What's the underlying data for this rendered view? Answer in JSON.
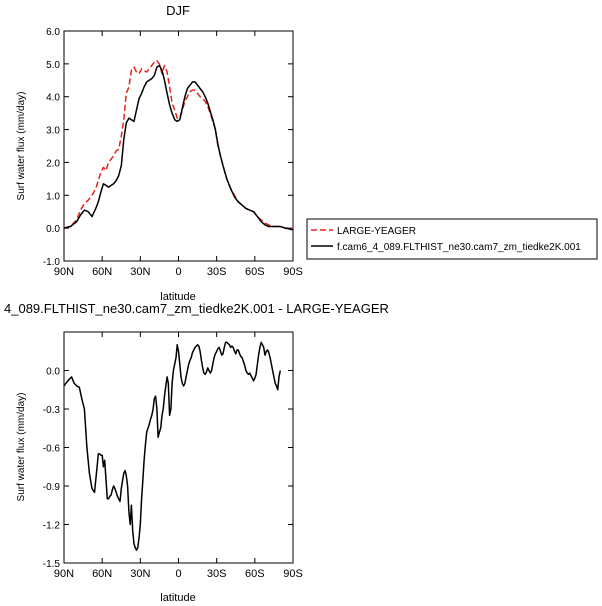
{
  "chart_data": [
    {
      "type": "line",
      "title": "DJF",
      "xlabel": "latitude",
      "ylabel": "Surf water flux (mm/day)",
      "xlim": [
        90,
        -90
      ],
      "ylim": [
        -1.0,
        6.0
      ],
      "x_ticks": [
        90,
        60,
        30,
        0,
        -30,
        -60,
        -90
      ],
      "x_tick_labels": [
        "90N",
        "60N",
        "30N",
        "0",
        "30S",
        "60S",
        "90S"
      ],
      "y_ticks": [
        -1.0,
        0.0,
        1.0,
        2.0,
        3.0,
        4.0,
        5.0,
        6.0
      ],
      "y_tick_labels": [
        "-1.0",
        "0.0",
        "1.0",
        "2.0",
        "3.0",
        "4.0",
        "5.0",
        "6.0"
      ],
      "grid": false,
      "legend": "outside-right",
      "series": [
        {
          "name": "LARGE-YEAGER",
          "color": "#e8231a",
          "dash": "dashed",
          "x": [
            90,
            85,
            80,
            77,
            74,
            71,
            68,
            65,
            63,
            61,
            59,
            57,
            55,
            53,
            51,
            49,
            47,
            45,
            43,
            41,
            39,
            37,
            35,
            33,
            31,
            29,
            27,
            25,
            23,
            21,
            19,
            17,
            15,
            13,
            11,
            9,
            7,
            5,
            3,
            1,
            -1,
            -3,
            -5,
            -7,
            -9,
            -11,
            -13,
            -15,
            -17,
            -19,
            -21,
            -23,
            -25,
            -27,
            -29,
            -31,
            -33,
            -35,
            -38,
            -41,
            -44,
            -47,
            -50,
            -53,
            -56,
            -59,
            -62,
            -65,
            -68,
            -71,
            -74,
            -77,
            -80,
            -84,
            -90
          ],
          "y": [
            0.0,
            0.05,
            0.25,
            0.55,
            0.75,
            0.85,
            1.0,
            1.2,
            1.45,
            1.7,
            1.85,
            1.75,
            2.0,
            2.1,
            2.2,
            2.35,
            2.4,
            2.8,
            3.3,
            4.1,
            4.3,
            4.8,
            4.9,
            4.75,
            4.7,
            4.85,
            4.8,
            4.75,
            4.85,
            4.95,
            5.05,
            5.1,
            5.0,
            4.7,
            4.95,
            4.75,
            4.3,
            3.8,
            3.6,
            3.35,
            3.35,
            3.6,
            3.85,
            4.0,
            4.15,
            4.2,
            4.2,
            4.1,
            4.0,
            3.95,
            3.85,
            3.7,
            3.5,
            3.25,
            3.0,
            2.5,
            2.2,
            1.9,
            1.5,
            1.2,
            1.0,
            0.8,
            0.7,
            0.6,
            0.55,
            0.5,
            0.35,
            0.25,
            0.15,
            0.1,
            0.05,
            0.05,
            0.05,
            0.0,
            0.0
          ]
        },
        {
          "name": "f.cam6_4_089.FLTHIST_ne30.cam7_zm_tiedke2K.001",
          "color": "#000000",
          "dash": "solid",
          "x": [
            90,
            85,
            80,
            77,
            74,
            71,
            68,
            65,
            63,
            61,
            59,
            57,
            55,
            53,
            51,
            49,
            47,
            45,
            43,
            41,
            39,
            37,
            35,
            33,
            31,
            29,
            27,
            25,
            23,
            21,
            19,
            17,
            15,
            13,
            11,
            9,
            7,
            5,
            3,
            1,
            -1,
            -3,
            -5,
            -7,
            -9,
            -11,
            -13,
            -15,
            -17,
            -19,
            -21,
            -23,
            -25,
            -27,
            -29,
            -31,
            -33,
            -35,
            -38,
            -41,
            -44,
            -47,
            -50,
            -53,
            -56,
            -59,
            -62,
            -65,
            -68,
            -71,
            -74,
            -77,
            -80,
            -84,
            -90
          ],
          "y": [
            0.0,
            0.05,
            0.2,
            0.4,
            0.55,
            0.5,
            0.35,
            0.6,
            0.8,
            1.1,
            1.35,
            1.3,
            1.25,
            1.3,
            1.35,
            1.45,
            1.6,
            1.9,
            2.7,
            3.2,
            3.35,
            3.3,
            3.25,
            3.6,
            3.95,
            4.1,
            4.3,
            4.45,
            4.5,
            4.55,
            4.65,
            4.9,
            4.95,
            4.8,
            4.5,
            4.1,
            3.75,
            3.5,
            3.3,
            3.25,
            3.3,
            3.65,
            4.0,
            4.25,
            4.35,
            4.45,
            4.45,
            4.35,
            4.25,
            4.15,
            4.0,
            3.8,
            3.55,
            3.3,
            3.0,
            2.55,
            2.2,
            1.9,
            1.5,
            1.2,
            0.95,
            0.8,
            0.7,
            0.6,
            0.55,
            0.5,
            0.35,
            0.2,
            0.1,
            0.05,
            0.05,
            0.05,
            0.05,
            0.0,
            -0.05
          ]
        }
      ]
    },
    {
      "type": "line",
      "title": "4_089.FLTHIST_ne30.cam7_zm_tiedke2K.001 - LARGE-YEAGER",
      "xlabel": "latitude",
      "ylabel": "Surf water flux (mm/day)",
      "xlim": [
        90,
        -90
      ],
      "ylim": [
        -1.5,
        0.3
      ],
      "x_ticks": [
        90,
        60,
        30,
        0,
        -30,
        -60,
        -90
      ],
      "x_tick_labels": [
        "90N",
        "60N",
        "30N",
        "0",
        "30S",
        "60S",
        "90S"
      ],
      "y_ticks": [
        -1.5,
        -1.2,
        -0.9,
        -0.6,
        -0.3,
        0.0
      ],
      "y_tick_labels": [
        "-1.5",
        "-1.2",
        "-0.9",
        "-0.6",
        "-0.3",
        "0.0"
      ],
      "grid": false,
      "series": [
        {
          "color": "#000000",
          "dash": "solid",
          "x": [
            90,
            87,
            84,
            82,
            80,
            78,
            76,
            74,
            72,
            70,
            68,
            66,
            64,
            63,
            62,
            61,
            60,
            59,
            58,
            57,
            56,
            55,
            54,
            53,
            52,
            51,
            50,
            49,
            48,
            47,
            46,
            45,
            44,
            43,
            42,
            41,
            40,
            39,
            38,
            37,
            36,
            35,
            34,
            33,
            32,
            31,
            30,
            29,
            28,
            27,
            26,
            25,
            24,
            23,
            22,
            21,
            20,
            19,
            18,
            17,
            16,
            15,
            14,
            13,
            12,
            11,
            10,
            9,
            8,
            7,
            6,
            5,
            4,
            3,
            2,
            1,
            0,
            -1,
            -2,
            -3,
            -4,
            -5,
            -6,
            -7,
            -8,
            -9,
            -10,
            -11,
            -12,
            -13,
            -14,
            -15,
            -16,
            -17,
            -18,
            -19,
            -20,
            -21,
            -22,
            -23,
            -24,
            -25,
            -26,
            -27,
            -28,
            -29,
            -30,
            -31,
            -32,
            -33,
            -34,
            -35,
            -36,
            -37,
            -38,
            -39,
            -40,
            -41,
            -42,
            -43,
            -44,
            -45,
            -46,
            -47,
            -48,
            -49,
            -50,
            -51,
            -52,
            -53,
            -54,
            -55,
            -56,
            -57,
            -58,
            -59,
            -60,
            -61,
            -62,
            -63,
            -64,
            -65,
            -66,
            -67,
            -68,
            -69,
            -70,
            -71,
            -72,
            -73,
            -74,
            -75,
            -76,
            -77,
            -78,
            -79,
            -80
          ],
          "y": [
            -0.12,
            -0.08,
            -0.05,
            -0.1,
            -0.12,
            -0.13,
            -0.22,
            -0.3,
            -0.6,
            -0.8,
            -0.92,
            -0.95,
            -0.75,
            -0.65,
            -0.65,
            -0.66,
            -0.66,
            -0.75,
            -0.7,
            -0.85,
            -1.0,
            -1.0,
            -0.98,
            -0.97,
            -0.93,
            -0.9,
            -0.92,
            -0.95,
            -0.98,
            -1.0,
            -1.02,
            -0.92,
            -0.86,
            -0.8,
            -0.78,
            -0.82,
            -0.9,
            -1.1,
            -1.2,
            -1.05,
            -1.25,
            -1.35,
            -1.38,
            -1.4,
            -1.38,
            -1.3,
            -1.2,
            -1.0,
            -0.85,
            -0.7,
            -0.58,
            -0.48,
            -0.45,
            -0.42,
            -0.38,
            -0.35,
            -0.3,
            -0.22,
            -0.2,
            -0.3,
            -0.52,
            -0.48,
            -0.45,
            -0.35,
            -0.3,
            -0.2,
            -0.12,
            -0.05,
            -0.1,
            -0.35,
            -0.3,
            -0.1,
            0.0,
            0.05,
            0.1,
            0.2,
            0.15,
            0.05,
            -0.05,
            -0.1,
            -0.12,
            -0.1,
            -0.05,
            0.0,
            0.05,
            0.08,
            0.1,
            0.14,
            0.16,
            0.18,
            0.19,
            0.2,
            0.19,
            0.15,
            0.08,
            0.02,
            -0.02,
            -0.03,
            -0.01,
            0.02,
            0.0,
            -0.02,
            0.0,
            0.05,
            0.1,
            0.13,
            0.15,
            0.17,
            0.18,
            0.15,
            0.12,
            0.13,
            0.18,
            0.22,
            0.22,
            0.21,
            0.2,
            0.18,
            0.19,
            0.18,
            0.15,
            0.13,
            0.16,
            0.16,
            0.13,
            0.11,
            0.1,
            0.07,
            0.04,
            0.0,
            -0.02,
            -0.03,
            -0.02,
            -0.04,
            -0.06,
            -0.08,
            -0.06,
            -0.03,
            0.05,
            0.12,
            0.18,
            0.22,
            0.2,
            0.18,
            0.12,
            0.15,
            0.16,
            0.14,
            0.1,
            0.05,
            0.0,
            -0.05,
            -0.1,
            -0.12,
            -0.15,
            -0.05,
            0.0
          ]
        }
      ]
    }
  ]
}
